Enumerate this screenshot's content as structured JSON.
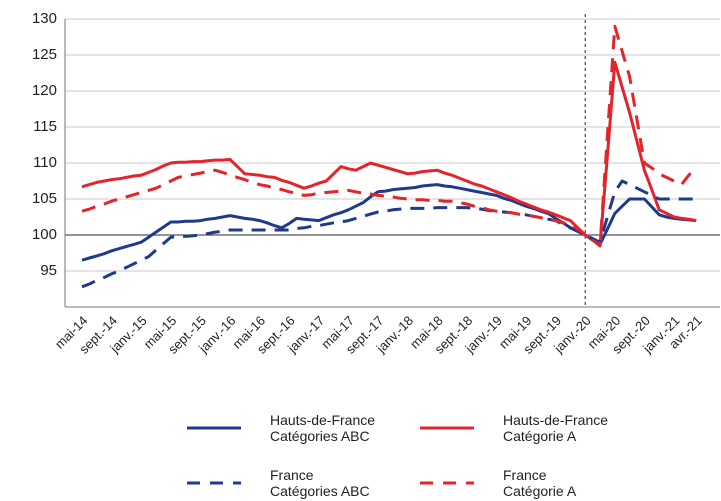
{
  "chart_data": {
    "type": "line",
    "categories": [
      "mai-14",
      null,
      null,
      null,
      "sept.-14",
      null,
      null,
      null,
      "janv.-15",
      null,
      null,
      null,
      "mai-15",
      null,
      null,
      null,
      "sept.-15",
      null,
      null,
      null,
      "janv.-16",
      null,
      null,
      null,
      "mai-16",
      null,
      null,
      null,
      "sept.-16",
      null,
      null,
      null,
      "janv.-17",
      null,
      null,
      null,
      "mai-17",
      null,
      null,
      null,
      "sept.-17",
      null,
      null,
      null,
      "janv.-18",
      null,
      null,
      null,
      "mai-18",
      null,
      null,
      null,
      "sept.-18",
      null,
      null,
      null,
      "janv.-19",
      null,
      null,
      null,
      "mai-19",
      null,
      null,
      null,
      "sept.-19",
      null,
      null,
      null,
      "janv.-20",
      null,
      null,
      null,
      "mai-20",
      null,
      null,
      null,
      "sept.-20",
      null,
      null,
      null,
      "janv.-21",
      null,
      null,
      "avr.-21"
    ],
    "series": [
      {
        "name": "Hauts-de-France\nCatégories ABC",
        "color": "#1f3a8c",
        "dash": false,
        "values": [
          96.5,
          96.8,
          97.1,
          97.4,
          97.8,
          98.1,
          98.4,
          98.7,
          99.0,
          99.7,
          100.4,
          101.1,
          101.8,
          101.8,
          101.9,
          101.9,
          102.0,
          102.2,
          102.3,
          102.5,
          102.7,
          102.5,
          102.3,
          102.2,
          102.0,
          101.7,
          101.3,
          101.0,
          101.6,
          102.3,
          102.2,
          102.1,
          102.0,
          102.4,
          102.8,
          103.1,
          103.5,
          104.0,
          104.5,
          105.3,
          106.0,
          106.1,
          106.3,
          106.4,
          106.5,
          106.6,
          106.8,
          106.9,
          107.0,
          106.8,
          106.7,
          106.5,
          106.3,
          106.1,
          105.9,
          105.7,
          105.5,
          105.1,
          104.8,
          104.4,
          104.0,
          103.7,
          103.3,
          103.0,
          102.3,
          101.7,
          101.0,
          100.5,
          100.0,
          99.3,
          98.7,
          100.8,
          103.0,
          104.0,
          105.0,
          105.0,
          105.0,
          103.9,
          102.8,
          102.5,
          102.3,
          102.2,
          102.1,
          102.0
        ]
      },
      {
        "name": "Hauts-de-France\nCatégorie A",
        "color": "#e3242b",
        "dash": false,
        "values": [
          106.7,
          107.0,
          107.3,
          107.5,
          107.7,
          107.8,
          108.0,
          108.2,
          108.3,
          108.7,
          109.1,
          109.6,
          110.0,
          110.1,
          110.1,
          110.2,
          110.2,
          110.3,
          110.4,
          110.4,
          110.5,
          109.5,
          108.5,
          108.4,
          108.3,
          108.1,
          108.0,
          107.6,
          107.3,
          106.9,
          106.5,
          106.8,
          107.2,
          107.5,
          108.5,
          109.5,
          109.2,
          109.0,
          109.5,
          110.0,
          109.7,
          109.4,
          109.1,
          108.8,
          108.5,
          108.6,
          108.8,
          108.9,
          109.0,
          108.6,
          108.3,
          107.9,
          107.5,
          107.1,
          106.8,
          106.4,
          106.0,
          105.6,
          105.2,
          104.7,
          104.3,
          103.9,
          103.5,
          103.2,
          102.8,
          102.4,
          102.0,
          101.0,
          100.0,
          99.3,
          98.5,
          111.0,
          124.0,
          120.5,
          117.0,
          113.0,
          109.0,
          106.3,
          103.5,
          103.0,
          102.5,
          102.3,
          102.2,
          102.0
        ]
      },
      {
        "name": "France\nCatégories ABC",
        "color": "#1f3a8c",
        "dash": true,
        "values": [
          92.8,
          93.2,
          93.7,
          94.1,
          94.6,
          95.0,
          95.5,
          96.0,
          96.5,
          97.0,
          97.9,
          98.8,
          99.7,
          99.8,
          99.8,
          99.9,
          100.0,
          100.2,
          100.4,
          100.5,
          100.7,
          100.7,
          100.7,
          100.7,
          100.7,
          100.7,
          100.7,
          100.7,
          100.7,
          100.9,
          101.0,
          101.2,
          101.3,
          101.5,
          101.7,
          101.8,
          102.0,
          102.3,
          102.6,
          102.9,
          103.2,
          103.3,
          103.5,
          103.6,
          103.7,
          103.7,
          103.7,
          103.7,
          103.8,
          103.8,
          103.8,
          103.8,
          103.8,
          103.7,
          103.6,
          103.4,
          103.3,
          103.2,
          103.1,
          102.9,
          102.8,
          102.6,
          102.4,
          102.2,
          102.0,
          101.5,
          101.0,
          100.5,
          100.0,
          99.5,
          99.0,
          102.5,
          106.0,
          107.5,
          107.0,
          106.5,
          106.0,
          105.5,
          105.0,
          105.0,
          105.0,
          105.0,
          105.0,
          105.0
        ]
      },
      {
        "name": "France\nCatégorie A",
        "color": "#e3242b",
        "dash": true,
        "values": [
          103.3,
          103.6,
          104.0,
          104.3,
          104.7,
          105.0,
          105.3,
          105.6,
          105.9,
          106.2,
          106.5,
          107.0,
          107.5,
          108.0,
          108.2,
          108.4,
          108.6,
          108.8,
          109.0,
          108.7,
          108.3,
          108.0,
          107.7,
          107.3,
          107.0,
          106.8,
          106.5,
          106.3,
          106.0,
          105.8,
          105.5,
          105.6,
          105.8,
          105.9,
          106.0,
          106.1,
          106.2,
          106.0,
          105.8,
          105.7,
          105.5,
          105.4,
          105.3,
          105.1,
          105.0,
          104.9,
          104.9,
          104.8,
          104.8,
          104.7,
          104.7,
          104.5,
          104.3,
          104.0,
          103.8,
          103.5,
          103.3,
          103.2,
          103.1,
          102.9,
          102.8,
          102.6,
          102.4,
          102.2,
          102.0,
          101.7,
          101.5,
          100.8,
          100.0,
          99.3,
          98.5,
          113.8,
          129.0,
          125.5,
          122.0,
          116.0,
          110.0,
          109.3,
          108.5,
          108.0,
          107.5,
          107.0,
          108.3,
          109.5
        ]
      }
    ],
    "ylim": [
      90,
      130
    ],
    "yticks": [
      95,
      100,
      105,
      110,
      115,
      120,
      125,
      130
    ],
    "grid": true,
    "hline": 100,
    "vline": "janv.-20",
    "legend": "bottom"
  }
}
